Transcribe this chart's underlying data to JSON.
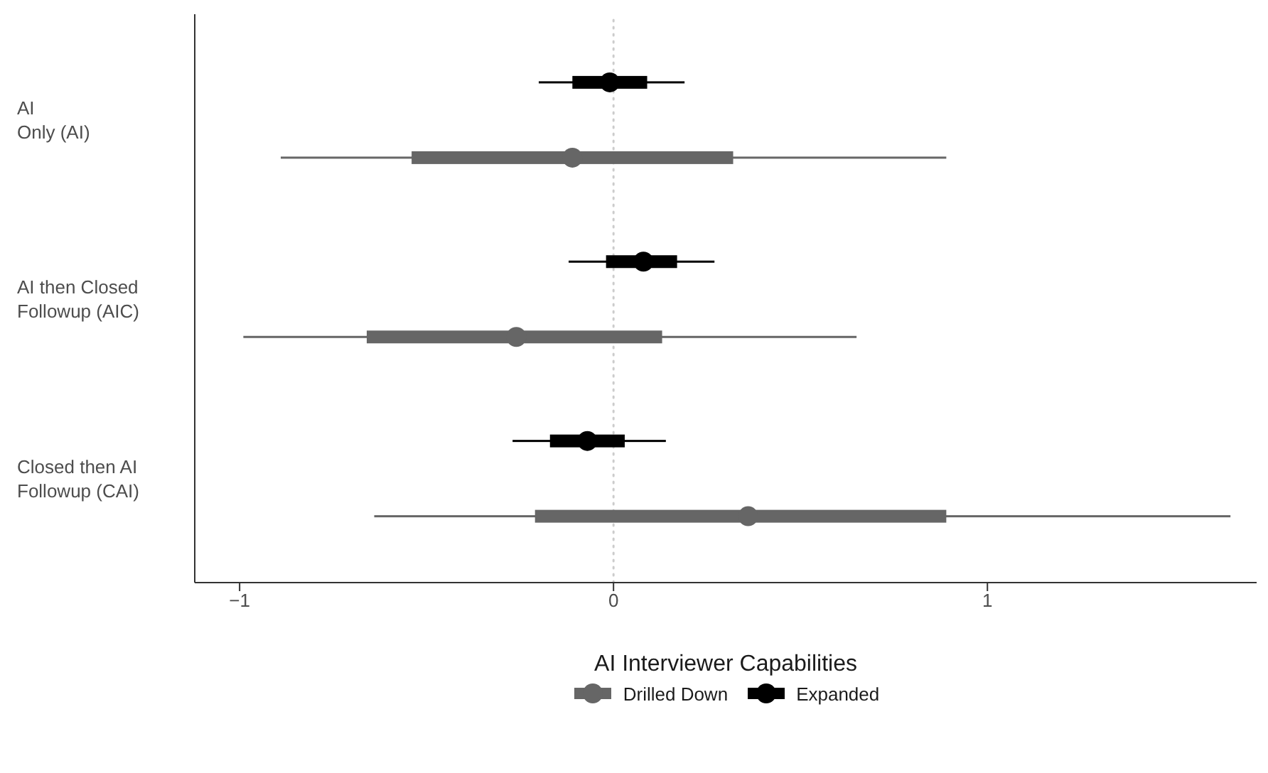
{
  "chart_data": {
    "type": "scatter",
    "orientation": "horizontal",
    "xlabel": "AI Interviewer Capabilities",
    "categories": [
      "AI\nOnly (AI)",
      "AI then Closed\nFollowup (AIC)",
      "Closed then AI\nFollowup (CAI)"
    ],
    "series": [
      {
        "name": "Drilled Down",
        "color": "#666666",
        "values": [
          -0.11,
          -0.26,
          0.36
        ]
      },
      {
        "name": "Expanded",
        "color": "#000000",
        "values": [
          -0.01,
          0.08,
          -0.07
        ]
      },
      {
        "type": "bar",
        "color": "#666666",
        "base": [
          -0.89,
          -0.99,
          -0.64
        ],
        "values": [
          1.78,
          1.64,
          2.29
        ]
      },
      {
        "type": "bar",
        "color": "#000000",
        "base": [
          -0.2,
          -0.12,
          -0.27
        ],
        "values": [
          0.39,
          0.39,
          0.41
        ]
      },
      {
        "type": "bar",
        "color": "#666666",
        "base": [
          -0.54,
          -0.66,
          -0.21
        ],
        "values": [
          0.86,
          0.79,
          1.1
        ]
      },
      {
        "type": "bar",
        "color": "#000000",
        "base": [
          -0.11,
          -0.02,
          -0.17
        ],
        "values": [
          0.2,
          0.19,
          0.2
        ]
      }
    ],
    "xlim": [
      -1.12,
      1.72
    ],
    "xticks": [
      {
        "value": -1,
        "label": "−1"
      },
      0,
      1
    ],
    "ref_lines": [
      {
        "axis": "x",
        "value": 0,
        "color": "#cccccc",
        "line_style": "dotted"
      }
    ],
    "marker": "circle",
    "grid": false,
    "legend": "bottom"
  }
}
